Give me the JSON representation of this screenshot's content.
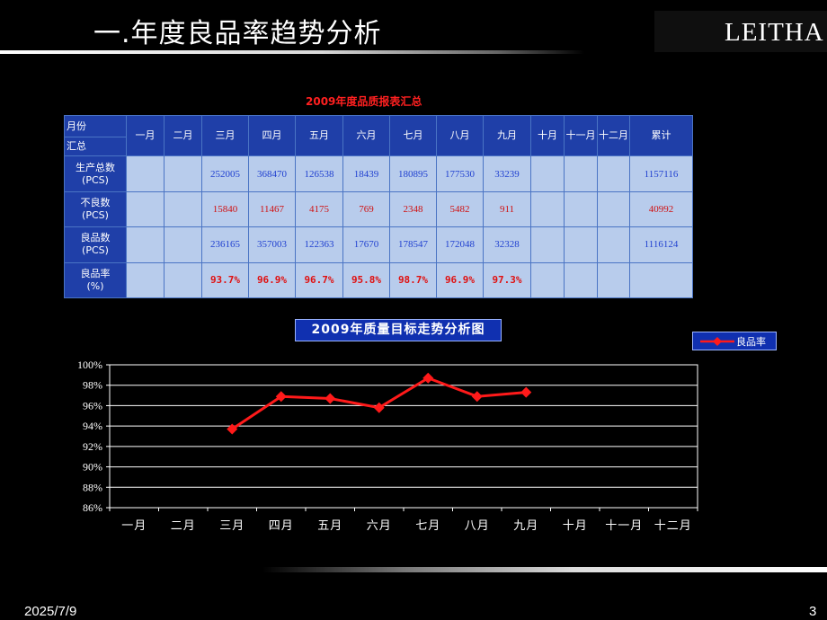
{
  "slide": {
    "title": "一.年度良品率趋势分析",
    "logo": "LEITHA",
    "date": "2025/7/9",
    "page": "3"
  },
  "table": {
    "caption": "2009年度品质报表汇总",
    "corner_top": "月份",
    "corner_bottom": "汇总",
    "months": [
      "一月",
      "二月",
      "三月",
      "四月",
      "五月",
      "六月",
      "七月",
      "八月",
      "九月",
      "十月",
      "十一月",
      "十二月"
    ],
    "total_label": "累计",
    "rows": [
      {
        "label": "生产总数",
        "unit": "(PCS)",
        "style": "blue",
        "values": [
          "",
          "",
          "252005",
          "368470",
          "126538",
          "18439",
          "180895",
          "177530",
          "33239",
          "",
          "",
          ""
        ],
        "total": "1157116"
      },
      {
        "label": "不良数",
        "unit": "(PCS)",
        "style": "red",
        "values": [
          "",
          "",
          "15840",
          "11467",
          "4175",
          "769",
          "2348",
          "5482",
          "911",
          "",
          "",
          ""
        ],
        "total": "40992"
      },
      {
        "label": "良品数",
        "unit": "(PCS)",
        "style": "blue",
        "values": [
          "",
          "",
          "236165",
          "357003",
          "122363",
          "17670",
          "178547",
          "172048",
          "32328",
          "",
          "",
          ""
        ],
        "total": "1116124"
      },
      {
        "label": "良品率",
        "unit": "(%)",
        "style": "rate",
        "values": [
          "",
          "",
          "93.7%",
          "96.9%",
          "96.7%",
          "95.8%",
          "98.7%",
          "96.9%",
          "97.3%",
          "",
          "",
          ""
        ],
        "total": ""
      }
    ]
  },
  "chart_data": {
    "type": "line",
    "title": "2009年质量目标走势分析图",
    "categories": [
      "一月",
      "二月",
      "三月",
      "四月",
      "五月",
      "六月",
      "七月",
      "八月",
      "九月",
      "十月",
      "十一月",
      "十二月"
    ],
    "series": [
      {
        "name": "良品率",
        "color": "#ff1a1a",
        "values": [
          null,
          null,
          93.7,
          96.9,
          96.7,
          95.8,
          98.7,
          96.9,
          97.3,
          null,
          null,
          null
        ]
      }
    ],
    "ylim": [
      86,
      100
    ],
    "yticks": [
      86,
      88,
      90,
      92,
      94,
      96,
      98,
      100
    ],
    "ytick_labels": [
      "86%",
      "88%",
      "90%",
      "92%",
      "94%",
      "96%",
      "98%",
      "100%"
    ],
    "grid": true,
    "legend": "top-right"
  }
}
